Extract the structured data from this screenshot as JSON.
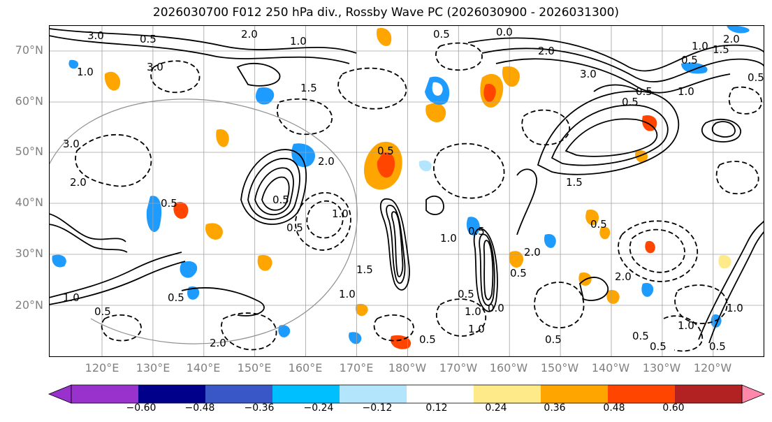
{
  "title": "2026030700 F012 250 hPa div., Rossby Wave PC (2026030900 - 2026031300)",
  "lat_labels": [
    "70°N",
    "60°N",
    "50°N",
    "40°N",
    "30°N",
    "20°N"
  ],
  "lon_labels": [
    "120°E",
    "130°E",
    "140°E",
    "150°E",
    "160°E",
    "170°E",
    "180°W",
    "170°W",
    "160°W",
    "150°W",
    "140°W",
    "130°W",
    "120°W"
  ],
  "contour_labels": [
    "3.0",
    "0.5",
    "2.0",
    "1.0",
    "0.5",
    "0.0",
    "1.0",
    "3.0",
    "1.5",
    "2.0",
    "3.0",
    "0.5",
    "1.0",
    "0.5",
    "1.5",
    "2.0",
    "3.0",
    "0.5",
    "0.5",
    "0.5",
    "2.0",
    "1.0",
    "0.5",
    "1.0",
    "0.5",
    "2.0",
    "1.5",
    "1.0",
    "0.5",
    "0.5",
    "2.0",
    "0.5",
    "1.0",
    "0.5",
    "0.5",
    "1.0",
    "0.0",
    "0.5",
    "2.0",
    "0.5",
    "0.5",
    "1.0",
    "0.5",
    "1.0",
    "1.5",
    "0.5",
    "1.0",
    "2.0",
    "0.5",
    "0.5",
    "1.0"
  ],
  "colorbar": {
    "ticks": [
      "−0.60",
      "−0.48",
      "−0.36",
      "−0.24",
      "−0.12",
      "0.12",
      "0.24",
      "0.36",
      "0.48",
      "0.60"
    ],
    "colors": [
      "#9932cc",
      "#00008b",
      "#3a57c8",
      "#00bfff",
      "#b3e5fc",
      "#ffffff",
      "#ffea8a",
      "#ffa500",
      "#ff4500",
      "#b22222",
      "#ff88aa"
    ]
  },
  "colors": {
    "positive": "#ffa500",
    "strong_positive": "#ff4500",
    "negative": "#1e9bff",
    "weak_negative": "#b3e5fc"
  }
}
